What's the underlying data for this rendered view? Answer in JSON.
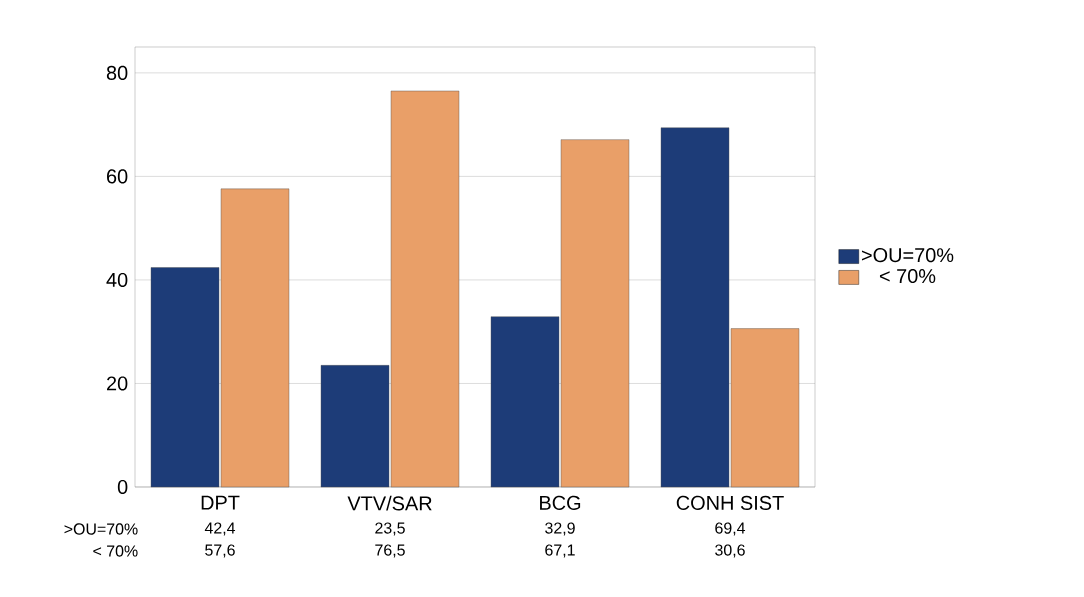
{
  "chart_data": {
    "type": "bar",
    "categories": [
      "DPT",
      "VTV/SAR",
      "BCG",
      "CONH SIST"
    ],
    "series": [
      {
        "name": ">OU=70%",
        "color": "#1d3c78",
        "values": [
          42.4,
          23.5,
          32.9,
          69.4
        ],
        "value_labels": [
          "42,4",
          "23,5",
          "32,9",
          "69,4"
        ]
      },
      {
        "name": "< 70%",
        "color": "#e99f68",
        "values": [
          57.6,
          76.5,
          67.1,
          30.6
        ],
        "value_labels": [
          "57,6",
          "76,5",
          "67,1",
          "30,6"
        ]
      }
    ],
    "ylim": [
      0,
      85
    ],
    "yticks": [
      0,
      20,
      40,
      60,
      80
    ],
    "grid": "y",
    "legend": "right"
  }
}
